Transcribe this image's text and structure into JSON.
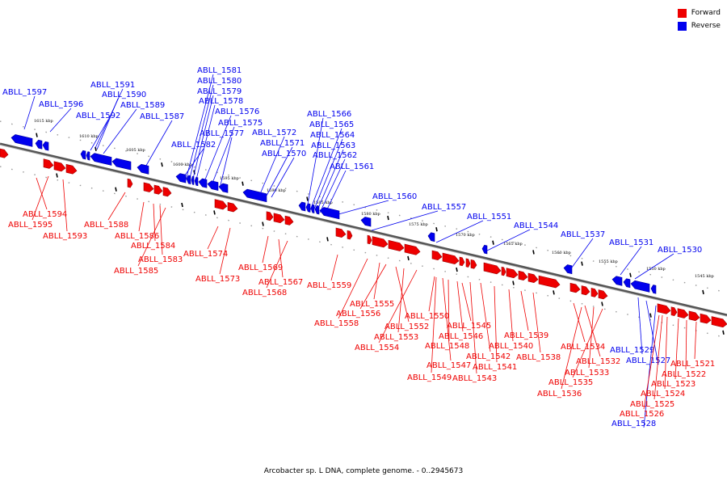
{
  "legend": {
    "forward_label": "Forward",
    "reverse_label": "Reverse",
    "forward_color": "#ee0000",
    "reverse_color": "#0000ee"
  },
  "caption": "Arcobacter sp. L DNA, complete genome. - 0..2945673",
  "ticks": [
    "1615 kbp",
    "1610 kbp",
    "1605 kbp",
    "1600 kbp",
    "1595 kbp",
    "1590 kbp",
    "1585 kbp",
    "1580 kbp",
    "1575 kbp",
    "1570 kbp",
    "1565 kbp",
    "1560 kbp",
    "1555 kbp",
    "1550 kbp",
    "1545 kbp"
  ],
  "reverse_labels": [
    "ABLL_1597",
    "ABLL_1596",
    "ABLL_1591",
    "ABLL_1590",
    "ABLL_1589",
    "ABLL_1592",
    "ABLL_1587",
    "ABLL_1581",
    "ABLL_1580",
    "ABLL_1579",
    "ABLL_1578",
    "ABLL_1576",
    "ABLL_1575",
    "ABLL_1577",
    "ABLL_1582",
    "ABLL_1572",
    "ABLL_1571",
    "ABLL_1570",
    "ABLL_1566",
    "ABLL_1565",
    "ABLL_1564",
    "ABLL_1563",
    "ABLL_1562",
    "ABLL_1561",
    "ABLL_1560",
    "ABLL_1557",
    "ABLL_1551",
    "ABLL_1544",
    "ABLL_1537",
    "ABLL_1531",
    "ABLL_1530",
    "ABLL_1529",
    "ABLL_1527",
    "ABLL_1528"
  ],
  "forward_labels": [
    "ABLL_1594",
    "ABLL_1595",
    "ABLL_1593",
    "ABLL_1588",
    "ABLL_1586",
    "ABLL_1584",
    "ABLL_1583",
    "ABLL_1585",
    "ABLL_1574",
    "ABLL_1573",
    "ABLL_1569",
    "ABLL_1567",
    "ABLL_1568",
    "ABLL_1559",
    "ABLL_1555",
    "ABLL_1556",
    "ABLL_1558",
    "ABLL_1552",
    "ABLL_1553",
    "ABLL_1554",
    "ABLL_1550",
    "ABLL_1545",
    "ABLL_1546",
    "ABLL_1548",
    "ABLL_1547",
    "ABLL_1549",
    "ABLL_1542",
    "ABLL_1543",
    "ABLL_1541",
    "ABLL_1540",
    "ABLL_1539",
    "ABLL_1538",
    "ABLL_1534",
    "ABLL_1532",
    "ABLL_1533",
    "ABLL_1535",
    "ABLL_1536",
    "ABLL_1521",
    "ABLL_1522",
    "ABLL_1523",
    "ABLL_1524",
    "ABLL_1525",
    "ABLL_1526"
  ]
}
